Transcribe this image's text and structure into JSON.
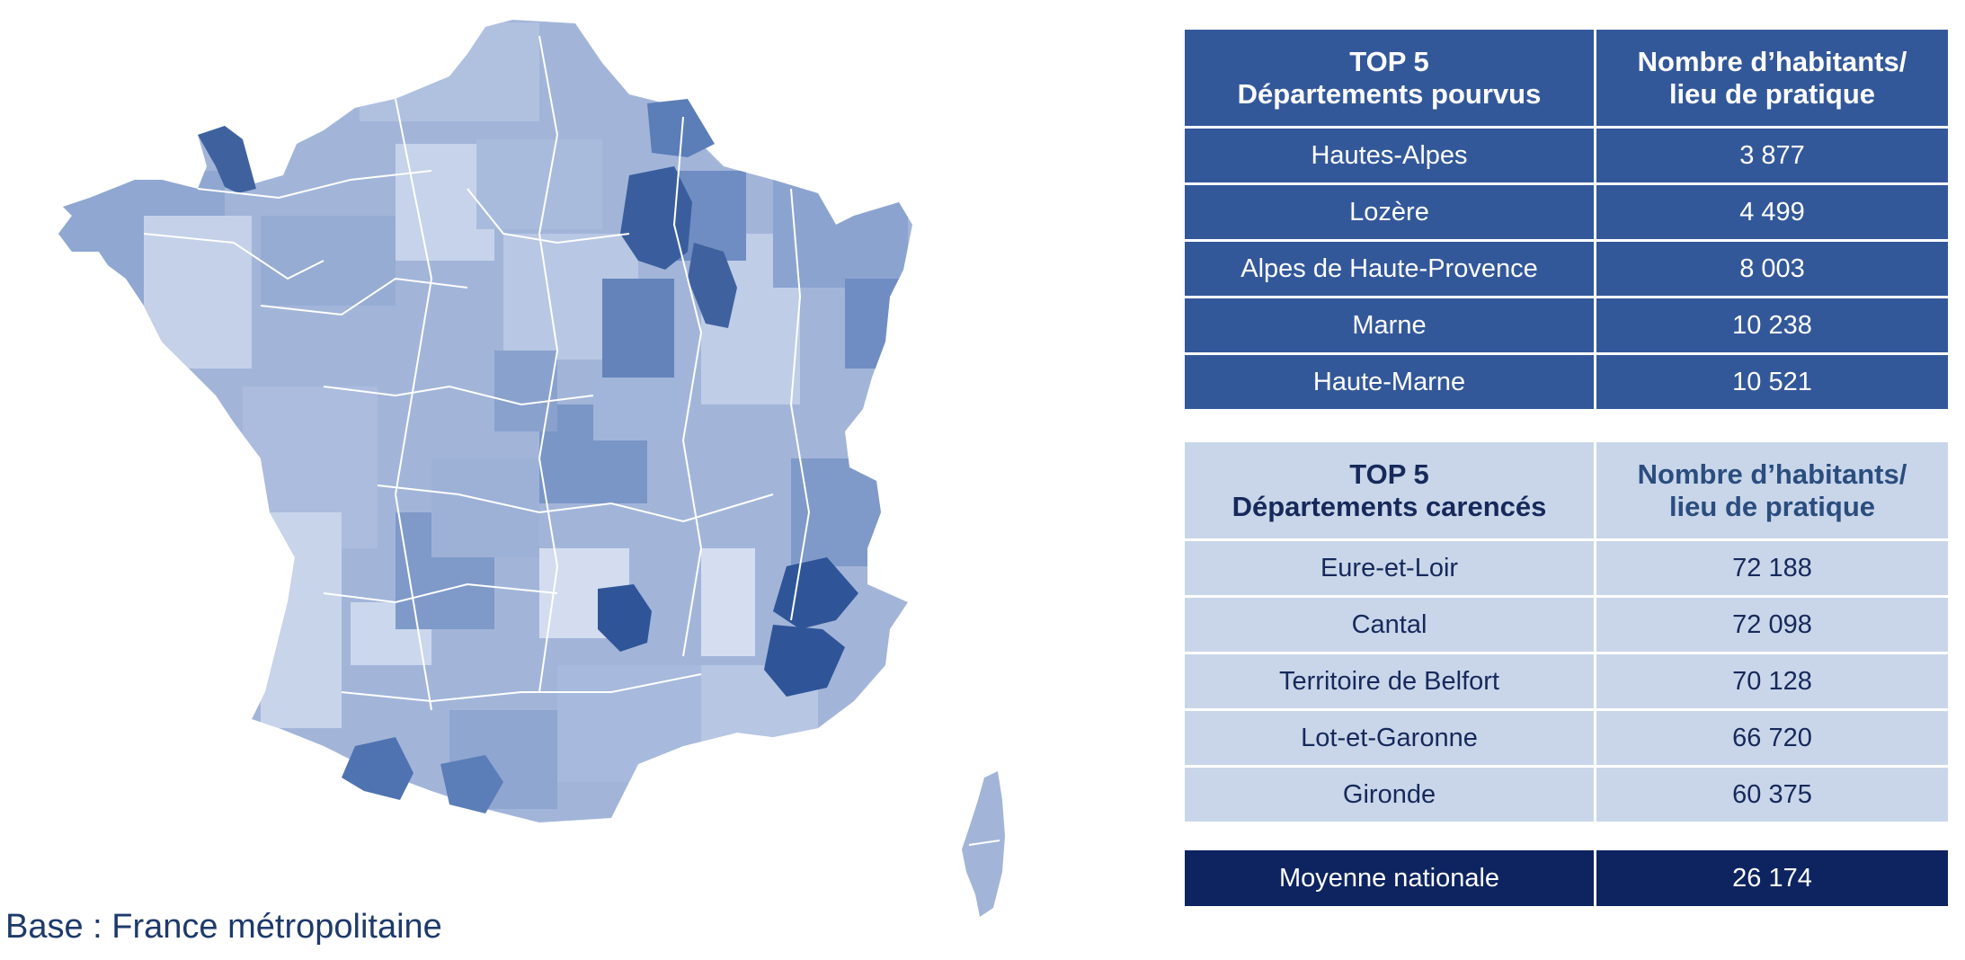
{
  "base_caption": "Base : France métropolitaine",
  "colors": {
    "pourvus_bg": "#33589a",
    "carences_bg": "#c9d6ea",
    "moyenne_bg": "#0e2461",
    "map_darkest": "#2f5598",
    "map_dark": "#5b7db8",
    "map_medium": "#7f9ac8",
    "map_light": "#a2b5d9",
    "map_lightest": "#cad6eb"
  },
  "map": {
    "highlighted_regions": [
      "Hautes-Alpes",
      "Lozère",
      "Alpes de Haute-Provence",
      "Marne",
      "Haute-Marne"
    ]
  },
  "pourvus": {
    "header_left": [
      "TOP 5",
      "Départements pourvus"
    ],
    "header_right": [
      "Nombre d’habitants/",
      "lieu de pratique"
    ],
    "rows": [
      {
        "name": "Hautes-Alpes",
        "value": "3 877"
      },
      {
        "name": "Lozère",
        "value": "4 499"
      },
      {
        "name": "Alpes de Haute-Provence",
        "value": "8 003"
      },
      {
        "name": "Marne",
        "value": "10 238"
      },
      {
        "name": "Haute-Marne",
        "value": "10 521"
      }
    ]
  },
  "carences": {
    "header_left": [
      "TOP 5",
      "Départements carencés"
    ],
    "header_right": [
      "Nombre d’habitants/",
      "lieu de pratique"
    ],
    "rows": [
      {
        "name": "Eure-et-Loir",
        "value": "72 188"
      },
      {
        "name": "Cantal",
        "value": "72 098"
      },
      {
        "name": "Territoire de Belfort",
        "value": "70 128"
      },
      {
        "name": "Lot-et-Garonne",
        "value": "66 720"
      },
      {
        "name": "Gironde",
        "value": "60 375"
      }
    ]
  },
  "moyenne": {
    "label": "Moyenne nationale",
    "value": "26 174"
  }
}
